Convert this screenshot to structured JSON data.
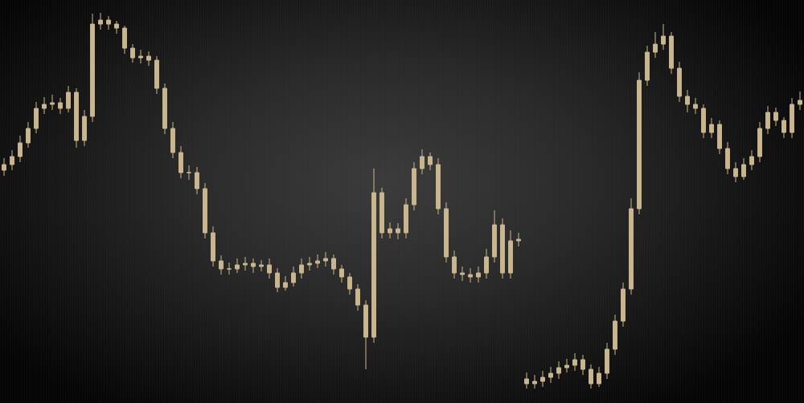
{
  "chart_data": {
    "type": "candlestick",
    "color": "#c9b68e",
    "x": [
      0,
      1,
      2,
      3,
      4,
      5,
      6,
      7,
      8,
      9,
      10,
      11,
      12,
      13,
      14,
      15,
      16,
      17,
      18,
      19,
      20,
      21,
      22,
      23,
      24,
      25,
      26,
      27,
      28,
      29,
      30,
      31,
      32,
      33,
      34,
      35,
      36,
      37,
      38,
      39,
      40,
      41,
      42,
      43,
      44,
      45,
      46,
      47,
      48,
      49,
      50,
      51,
      52,
      53,
      54,
      55,
      56,
      57,
      58,
      59,
      60,
      61,
      62,
      63,
      64,
      65,
      66,
      67,
      68,
      69,
      70,
      71,
      72,
      73,
      74,
      75,
      76,
      77,
      78,
      79,
      80,
      81,
      82,
      83,
      84,
      85,
      86,
      87,
      88,
      89,
      90,
      91,
      92,
      93,
      94,
      95,
      96,
      97,
      98,
      99
    ],
    "open": [
      290,
      297,
      307,
      324,
      342,
      367,
      372,
      374,
      367,
      387,
      327,
      357,
      472,
      477,
      472,
      467,
      442,
      430,
      432,
      427,
      392,
      342,
      312,
      287,
      287,
      267,
      212,
      177,
      167,
      167,
      172,
      174,
      170,
      172,
      162,
      144,
      150,
      162,
      172,
      174,
      177,
      180,
      167,
      157,
      142,
      122,
      82,
      262,
      212,
      217,
      212,
      247,
      292,
      307,
      297,
      242,
      182,
      162,
      160,
      157,
      162,
      182,
      222,
      162,
      202,
      30,
      24,
      27,
      32,
      37,
      44,
      47,
      54,
      42,
      24,
      37,
      67,
      102,
      142,
      242,
      402,
      437,
      447,
      457,
      417,
      382,
      372,
      367,
      337,
      347,
      317,
      292,
      282,
      297,
      307,
      342,
      362,
      352,
      337,
      372
    ],
    "high": [
      305,
      315,
      333,
      350,
      375,
      381,
      384,
      380,
      395,
      392,
      365,
      485,
      486,
      482,
      476,
      470,
      447,
      440,
      438,
      432,
      398,
      350,
      320,
      296,
      294,
      274,
      220,
      184,
      175,
      180,
      182,
      180,
      178,
      180,
      168,
      158,
      170,
      180,
      182,
      185,
      188,
      185,
      172,
      162,
      148,
      128,
      292,
      268,
      225,
      224,
      255,
      300,
      316,
      312,
      305,
      250,
      190,
      170,
      168,
      170,
      192,
      240,
      230,
      215,
      212,
      38,
      35,
      40,
      45,
      52,
      55,
      62,
      60,
      48,
      45,
      75,
      110,
      150,
      255,
      412,
      445,
      462,
      472,
      462,
      425,
      390,
      380,
      372,
      355,
      352,
      325,
      300,
      305,
      315,
      350,
      370,
      368,
      356,
      380,
      388
    ],
    "low": [
      283,
      290,
      300,
      318,
      336,
      360,
      365,
      360,
      362,
      318,
      320,
      350,
      465,
      465,
      460,
      435,
      424,
      423,
      420,
      385,
      335,
      305,
      280,
      278,
      260,
      205,
      170,
      160,
      160,
      162,
      165,
      162,
      164,
      155,
      138,
      140,
      145,
      155,
      165,
      168,
      170,
      160,
      150,
      135,
      115,
      42,
      75,
      205,
      205,
      204,
      205,
      240,
      285,
      290,
      235,
      175,
      155,
      152,
      150,
      150,
      155,
      175,
      155,
      155,
      195,
      18,
      18,
      20,
      25,
      30,
      38,
      40,
      35,
      18,
      20,
      30,
      60,
      95,
      135,
      235,
      395,
      430,
      440,
      410,
      375,
      362,
      360,
      330,
      330,
      310,
      285,
      275,
      278,
      290,
      300,
      335,
      345,
      330,
      330,
      365
    ],
    "close": [
      297,
      307,
      324,
      342,
      367,
      372,
      374,
      367,
      387,
      327,
      357,
      472,
      477,
      472,
      467,
      442,
      430,
      432,
      427,
      392,
      342,
      312,
      287,
      287,
      267,
      212,
      177,
      167,
      167,
      172,
      174,
      170,
      172,
      162,
      144,
      150,
      162,
      172,
      174,
      177,
      180,
      167,
      157,
      142,
      122,
      82,
      262,
      212,
      217,
      212,
      247,
      292,
      307,
      297,
      242,
      182,
      162,
      160,
      157,
      162,
      182,
      222,
      162,
      202,
      204,
      24,
      27,
      32,
      37,
      44,
      47,
      54,
      42,
      24,
      37,
      67,
      102,
      142,
      242,
      402,
      437,
      447,
      457,
      417,
      382,
      372,
      367,
      337,
      347,
      317,
      292,
      282,
      297,
      307,
      342,
      362,
      352,
      337,
      372,
      377
    ],
    "xlim": [
      -0.5,
      99.5
    ],
    "ylim": [
      0,
      502
    ],
    "tick_labels": false,
    "grid": false
  }
}
